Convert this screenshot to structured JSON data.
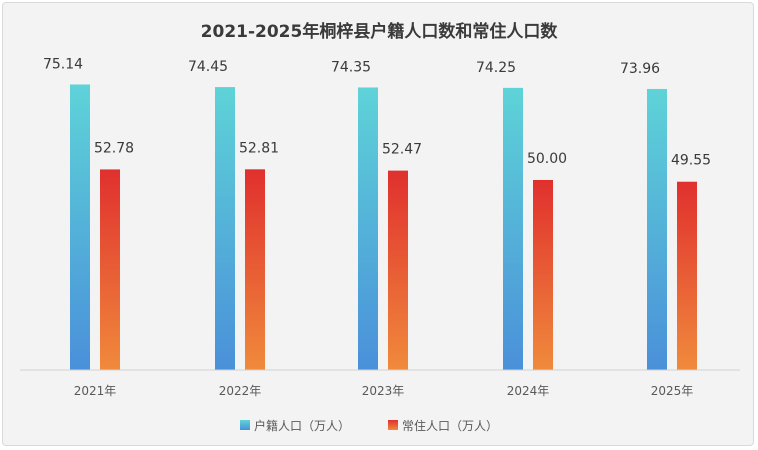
{
  "chart_data": {
    "type": "bar",
    "title": "2021-2025年桐梓县户籍人口数和常住人口数",
    "categories": [
      "2021年",
      "2022年",
      "2023年",
      "2024年",
      "2025年"
    ],
    "series": [
      {
        "name": "户籍人口（万人）",
        "values": [
          75.14,
          74.45,
          74.35,
          74.25,
          73.96
        ],
        "labels": [
          "75.14",
          "74.45",
          "74.35",
          "74.25",
          "73.96"
        ],
        "color_top": "#5ed3d8",
        "color_bottom": "#4a90d9"
      },
      {
        "name": "常住人口（万人）",
        "values": [
          52.78,
          52.81,
          52.47,
          50.0,
          49.55
        ],
        "labels": [
          "52.78",
          "52.81",
          "52.47",
          "50.00",
          "49.55"
        ],
        "color_top": "#e0302e",
        "color_bottom": "#f08a3c"
      }
    ],
    "ylim": [
      0,
      80
    ],
    "grid": false,
    "legend_position": "bottom"
  }
}
